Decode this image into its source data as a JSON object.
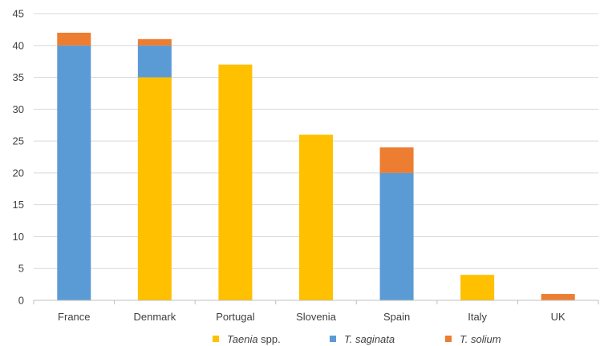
{
  "chart_data": {
    "type": "bar",
    "stacked": true,
    "title": "",
    "xlabel": "",
    "ylabel": "",
    "ylim": [
      0,
      45
    ],
    "yticks": [
      0,
      5,
      10,
      15,
      20,
      25,
      30,
      35,
      40,
      45
    ],
    "grid": true,
    "legend_position": "bottom",
    "categories": [
      "France",
      "Denmark",
      "Portugal",
      "Slovenia",
      "Spain",
      "Italy",
      "UK"
    ],
    "series": [
      {
        "name": "Taenia spp.",
        "legend_parts": [
          {
            "text": "Taenia",
            "italic": true
          },
          {
            "text": " spp.",
            "italic": false
          }
        ],
        "color": "#FFC000",
        "values": [
          0,
          35,
          37,
          26,
          0,
          4,
          0
        ]
      },
      {
        "name": "T. saginata",
        "legend_parts": [
          {
            "text": "T. saginata",
            "italic": true
          }
        ],
        "color": "#5B9BD5",
        "values": [
          40,
          5,
          0,
          0,
          20,
          0,
          0
        ]
      },
      {
        "name": "T. solium",
        "legend_parts": [
          {
            "text": "T. solium",
            "italic": true
          }
        ],
        "color": "#ED7D31",
        "values": [
          2,
          1,
          0,
          0,
          4,
          0,
          1
        ]
      }
    ],
    "colors": {
      "grid": "#D9D9D9",
      "axis": "#BFBFBF",
      "text": "#404040"
    }
  }
}
